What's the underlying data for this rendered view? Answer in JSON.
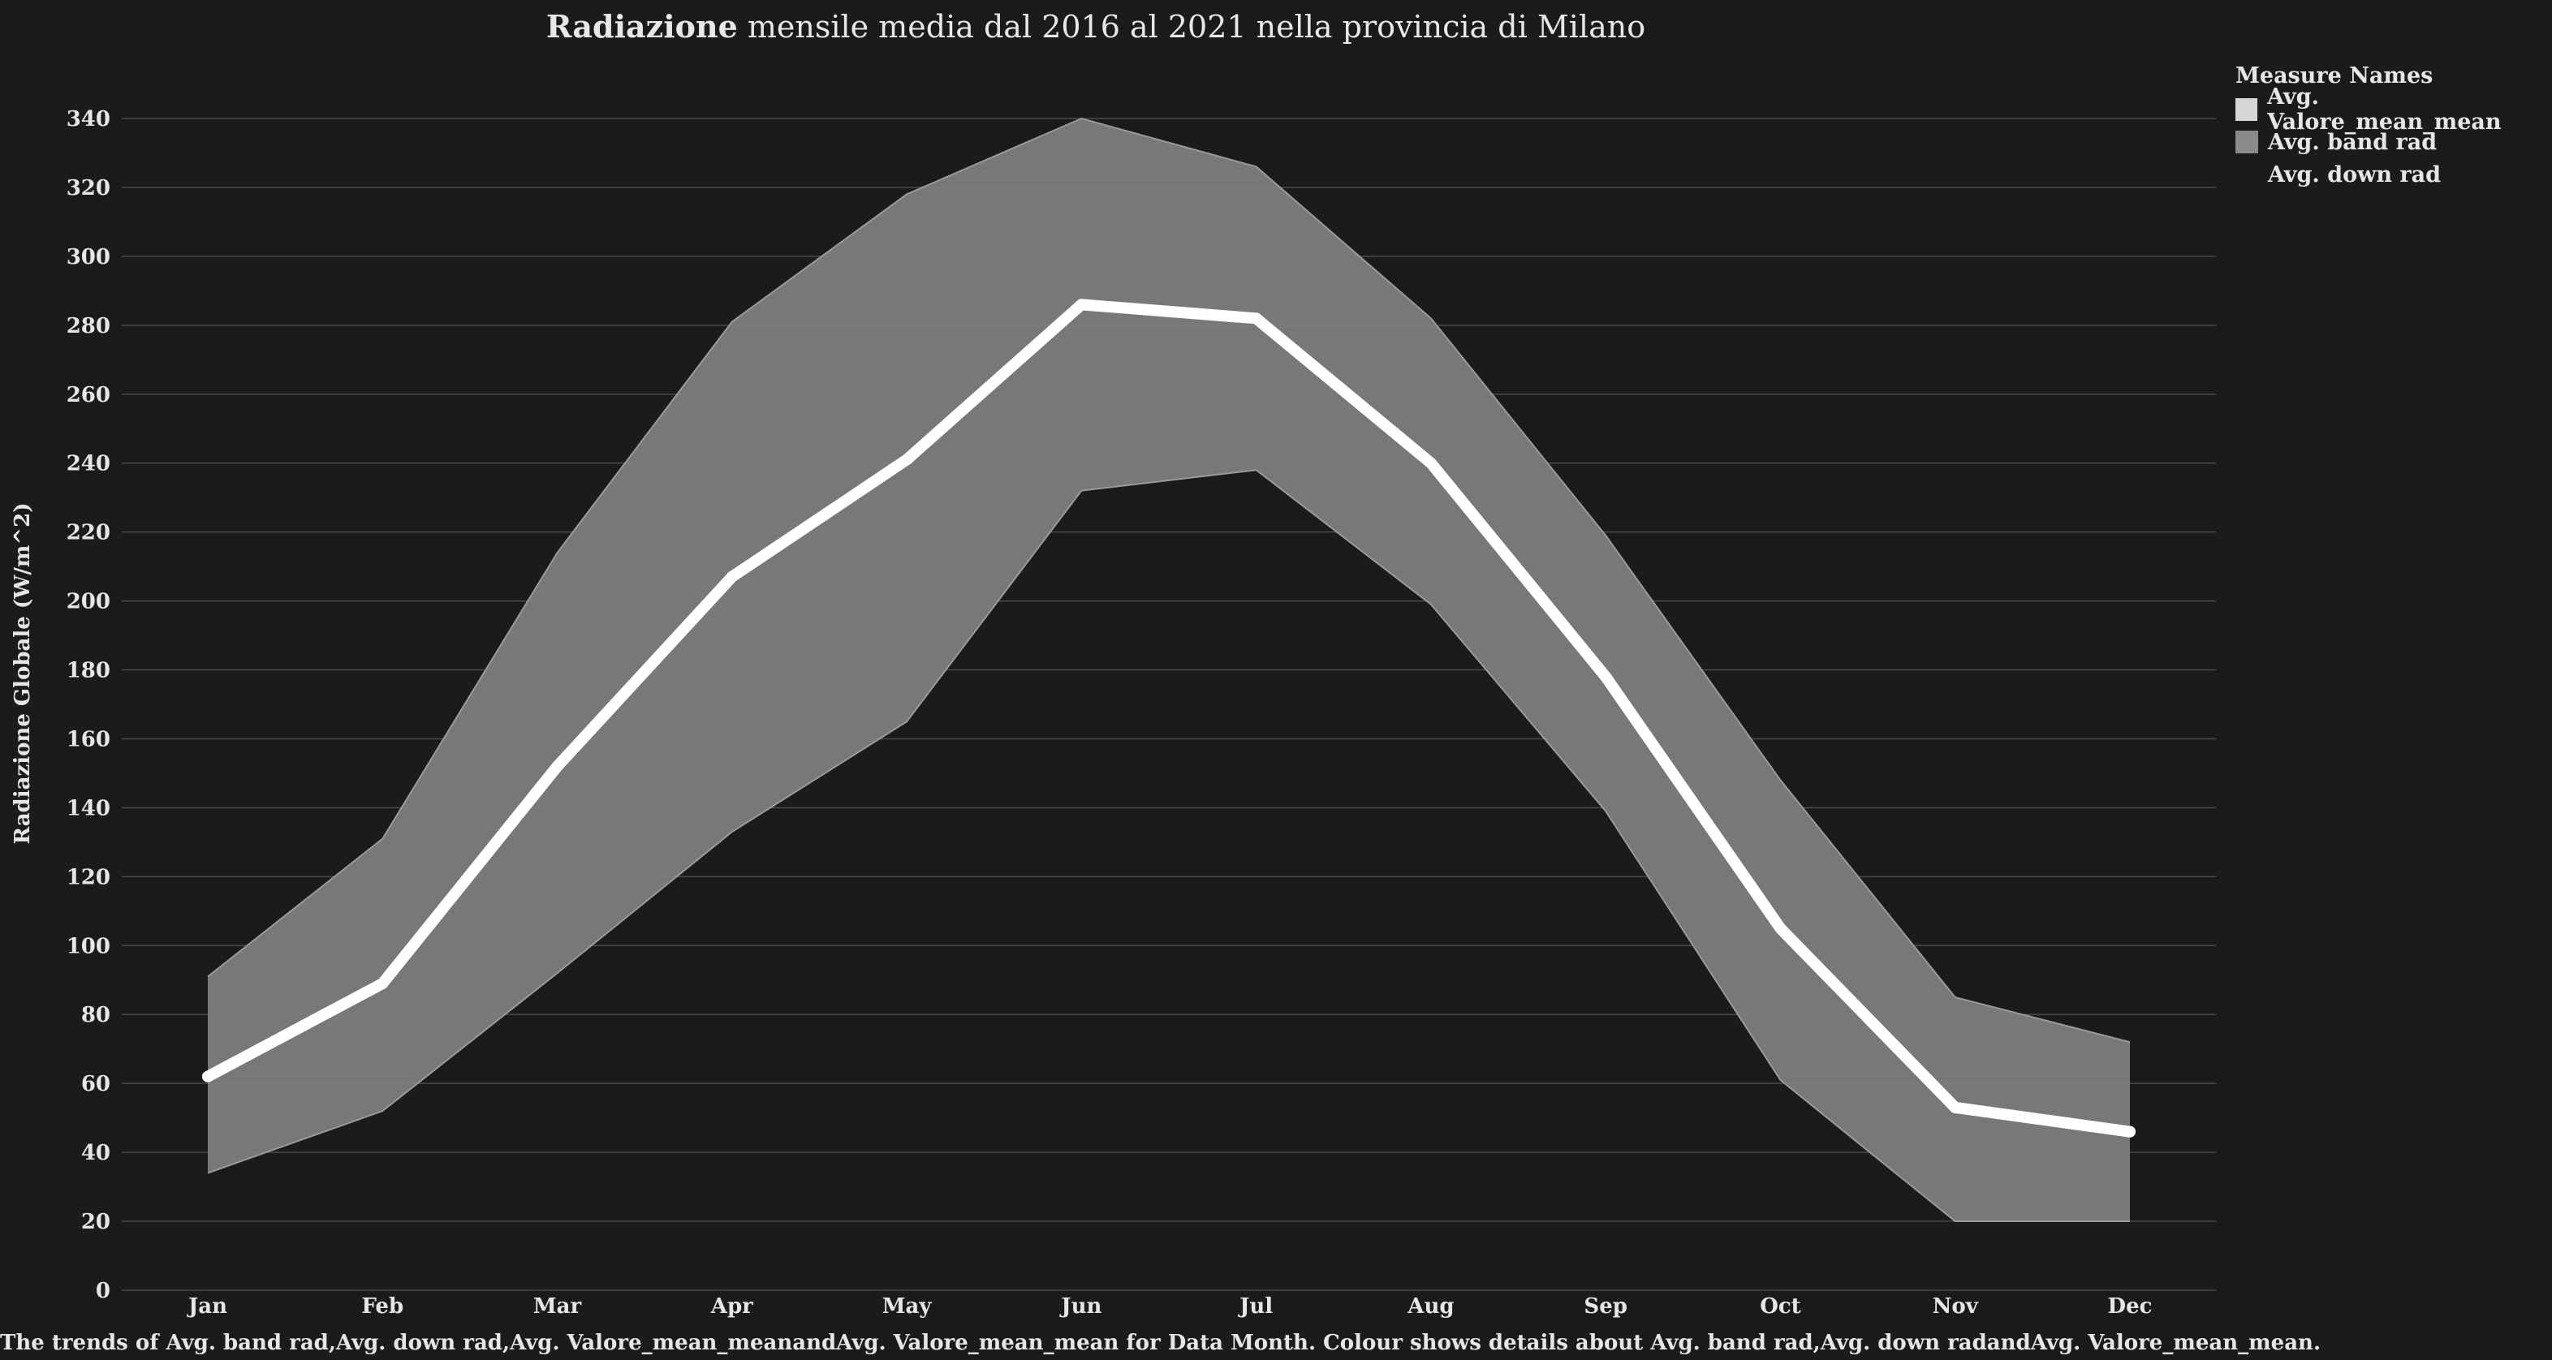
{
  "title": {
    "bold": "Radiazione",
    "rest": " mensile media dal 2016 al 2021 nella provincia di Milano"
  },
  "caption": "The trends of Avg. band rad,Avg. down rad,Avg. Valore_mean_meanandAvg. Valore_mean_mean for Data Month. Colour shows details about Avg. band rad,Avg. down radandAvg. Valore_mean_mean.",
  "legend": {
    "title": "Measure Names",
    "items": [
      {
        "label": "Avg. Valore_mean_mean",
        "color": "#d6d6d6"
      },
      {
        "label": "Avg. band rad",
        "color": "#8a8a8a"
      },
      {
        "label": "Avg. down rad",
        "color": "#1b1b1b"
      }
    ]
  },
  "chart_data": {
    "type": "area",
    "ylabel": "Radiazione Globale (W/m^2)",
    "xlabel": "",
    "categories": [
      "Jan",
      "Feb",
      "Mar",
      "Apr",
      "May",
      "Jun",
      "Jul",
      "Aug",
      "Sep",
      "Oct",
      "Nov",
      "Dec"
    ],
    "ylim": [
      0,
      340
    ],
    "yticks": [
      0,
      20,
      40,
      60,
      80,
      100,
      120,
      140,
      160,
      180,
      200,
      220,
      240,
      260,
      280,
      300,
      320,
      340
    ],
    "grid": true,
    "legend_position": "top-right",
    "series": [
      {
        "name": "Avg. Valore_mean_mean",
        "type": "line",
        "color": "#ffffff",
        "values": [
          62,
          89,
          152,
          207,
          241,
          286,
          282,
          240,
          178,
          105,
          53,
          46
        ]
      },
      {
        "name": "Avg. band rad",
        "type": "area_upper",
        "color": "#808080",
        "values": [
          91,
          131,
          214,
          281,
          318,
          340,
          326,
          282,
          219,
          148,
          85,
          72
        ]
      },
      {
        "name": "Avg. down rad",
        "type": "area_lower",
        "color": "#808080",
        "values": [
          34,
          52,
          92,
          133,
          165,
          232,
          238,
          199,
          139,
          61,
          20,
          20
        ]
      }
    ]
  }
}
